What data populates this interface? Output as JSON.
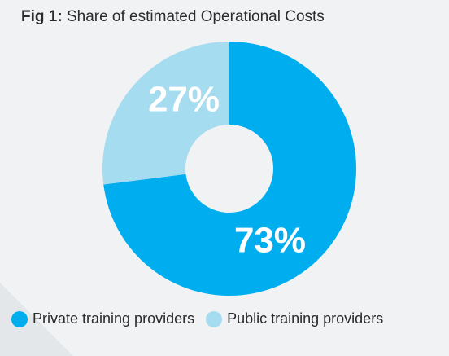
{
  "title": {
    "prefix": "Fig 1:",
    "text": "Share of estimated Operational Costs"
  },
  "chart_data": {
    "type": "pie",
    "donut": true,
    "start": "top",
    "direction": "clockwise",
    "legend_placement": "bottom-left",
    "slices": [
      {
        "name": "Private training providers",
        "value": 73,
        "label": "73%",
        "color": "#00aeef"
      },
      {
        "name": "Public training providers",
        "value": 27,
        "label": "27%",
        "color": "#a6dcef"
      }
    ]
  }
}
